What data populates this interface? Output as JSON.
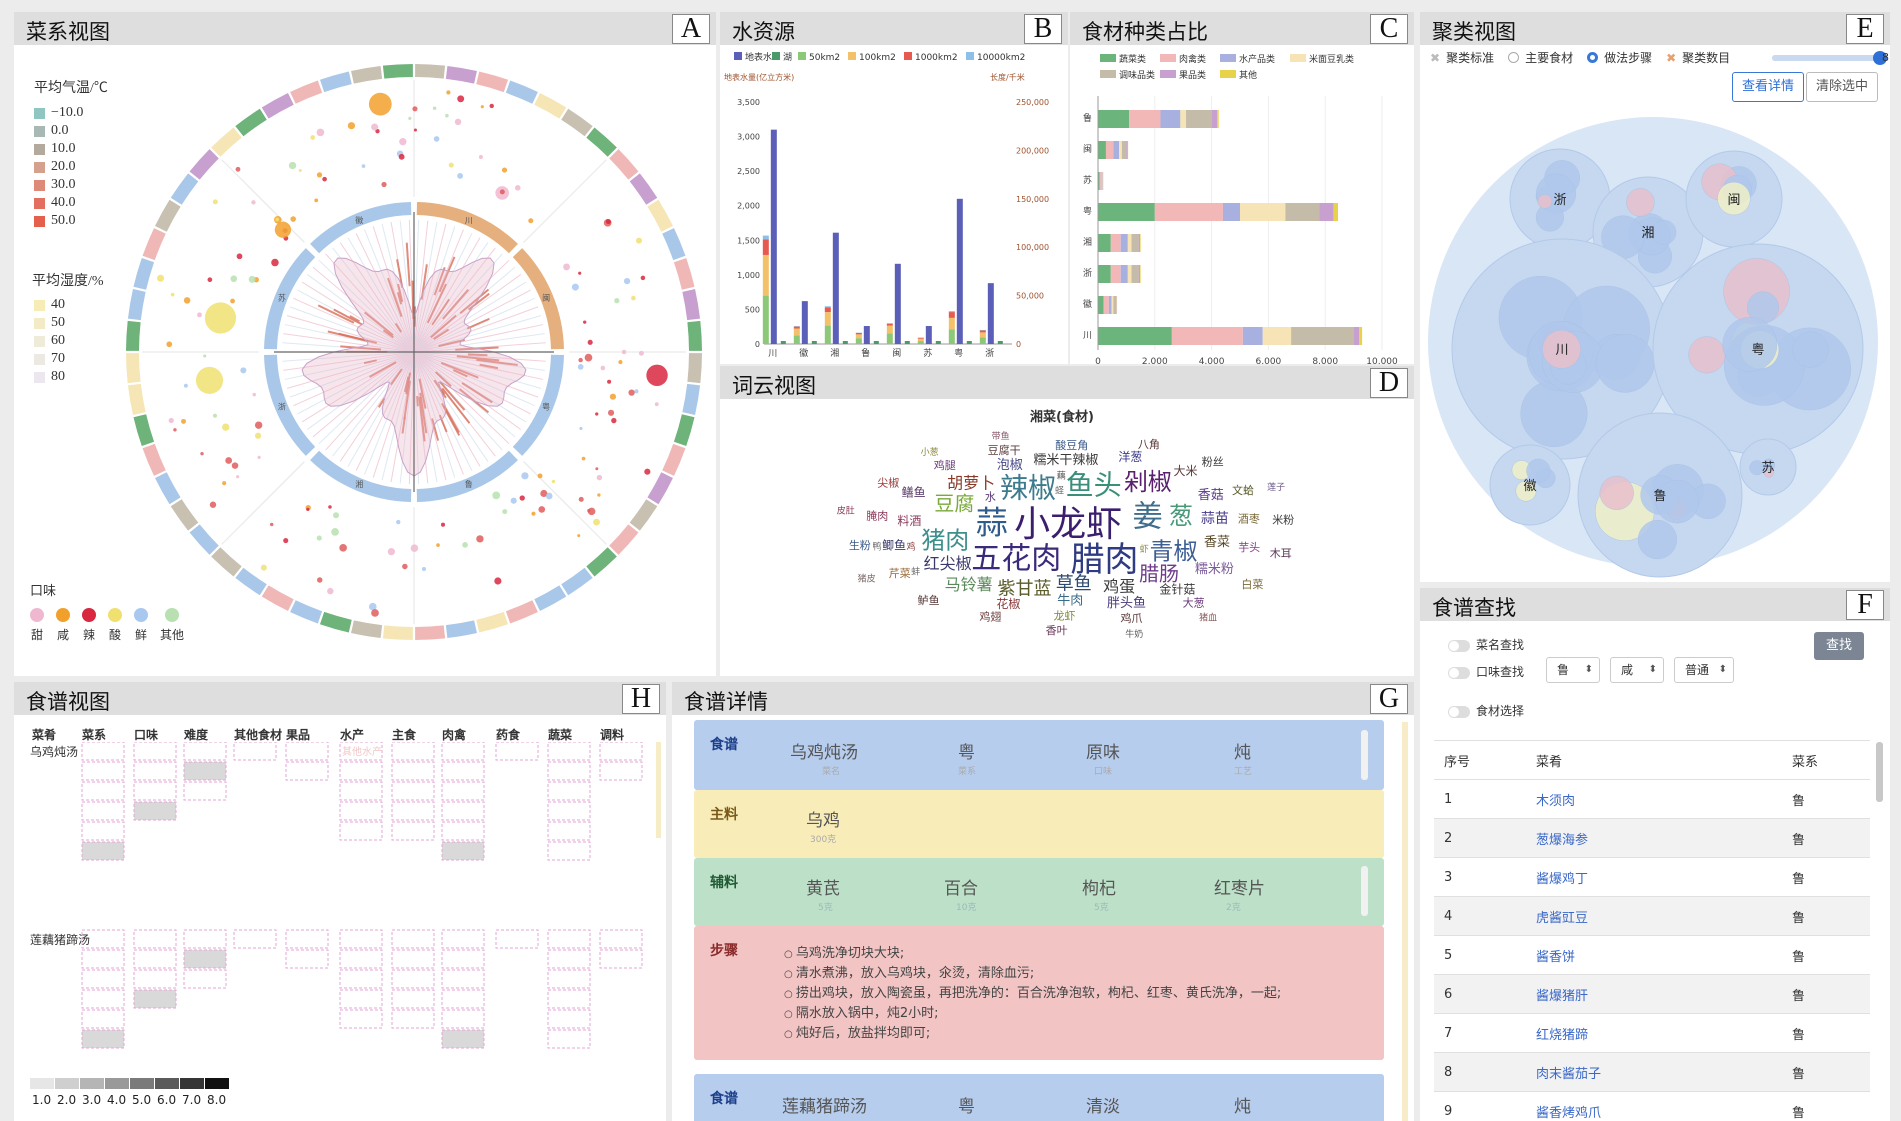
{
  "panels": {
    "A": {
      "title": "菜系视图",
      "letter": "A"
    },
    "B": {
      "title": "水资源",
      "letter": "B"
    },
    "C": {
      "title": "食材种类占比",
      "letter": "C"
    },
    "D": {
      "title": "词云视图",
      "letter": "D"
    },
    "E": {
      "title": "聚类视图",
      "letter": "E"
    },
    "F": {
      "title": "食谱查找",
      "letter": "F"
    },
    "G": {
      "title": "食谱详情",
      "letter": "G"
    },
    "H": {
      "title": "食谱视图",
      "letter": "H"
    }
  },
  "cuisine_view": {
    "temp_title": "平均气温/℃",
    "temp_legend": [
      {
        "label": "−10.0",
        "color": "#8fc6c2"
      },
      {
        "label": "0.0",
        "color": "#a8b8b4"
      },
      {
        "label": "10.0",
        "color": "#b3a99c"
      },
      {
        "label": "20.0",
        "color": "#d6a08e"
      },
      {
        "label": "30.0",
        "color": "#de8a78"
      },
      {
        "label": "40.0",
        "color": "#e3705e"
      },
      {
        "label": "50.0",
        "color": "#e4604c"
      }
    ],
    "hum_title": "平均湿度/%",
    "hum_legend": [
      {
        "label": "40",
        "color": "#f6ecb6"
      },
      {
        "label": "50",
        "color": "#f3ebc5"
      },
      {
        "label": "60",
        "color": "#eeebd9"
      },
      {
        "label": "70",
        "color": "#ece9e2"
      },
      {
        "label": "80",
        "color": "#ece6ee"
      }
    ],
    "flavor_title": "口味",
    "flavor_legend": [
      {
        "label": "甜",
        "color": "#f0b8d0"
      },
      {
        "label": "咸",
        "color": "#f2a02c"
      },
      {
        "label": "辣",
        "color": "#d8273f"
      },
      {
        "label": "酸",
        "color": "#f0e070"
      },
      {
        "label": "鲜",
        "color": "#a8c8f0"
      },
      {
        "label": "其他",
        "color": "#b8e0b0"
      }
    ],
    "inner_ring": [
      {
        "label": "川",
        "color": "#e6b07e"
      },
      {
        "label": "闽",
        "color": "#e6b07e"
      },
      {
        "label": "粤",
        "color": "#a9c7e8"
      },
      {
        "label": "鲁",
        "color": "#a9c7e8"
      },
      {
        "label": "湘",
        "color": "#a9c7e8"
      },
      {
        "label": "浙",
        "color": "#a9c7e8"
      },
      {
        "label": "苏",
        "color": "#a9c7e8"
      },
      {
        "label": "徽",
        "color": "#a9c7e8"
      }
    ]
  },
  "water": {
    "legend": [
      {
        "label": "地表水",
        "color": "#5b5fb8"
      },
      {
        "label": "湖",
        "color": "#4a9a6a"
      },
      {
        "label": "50km2",
        "color": "#8cc878"
      },
      {
        "label": "100km2",
        "color": "#f2c16a"
      },
      {
        "label": "1000km2",
        "color": "#e65a50"
      },
      {
        "label": "10000km2",
        "color": "#8cc0e8"
      }
    ],
    "y_left_label": "地表水量(亿立方米)",
    "y_right_label": "长度/千米",
    "y_left_ticks": [
      "3,500",
      "3,000",
      "2,500",
      "2,000",
      "1,500",
      "1,000",
      "500",
      "0"
    ],
    "y_right_ticks": [
      "250,000",
      "200,000",
      "150,000",
      "100,000",
      "50,000",
      "0"
    ]
  },
  "chart_data": [
    {
      "type": "bar",
      "categories": [
        "川",
        "徽",
        "湘",
        "鲁",
        "闽",
        "苏",
        "粤",
        "浙"
      ],
      "series": [
        {
          "name": "地表水",
          "values": [
            3100,
            620,
            1610,
            260,
            1160,
            260,
            2100,
            880
          ]
        },
        {
          "name": "50km2",
          "values": [
            50000,
            9000,
            19000,
            6000,
            11000,
            3000,
            15000,
            7000
          ]
        },
        {
          "name": "100km2",
          "values": [
            42000,
            7000,
            14000,
            4000,
            8000,
            2500,
            12000,
            5000
          ]
        },
        {
          "name": "1000km2",
          "values": [
            16000,
            2000,
            5000,
            1500,
            2000,
            1000,
            6000,
            2000
          ]
        },
        {
          "name": "10000km2",
          "values": [
            4000,
            500,
            1000,
            200,
            500,
            200,
            1000,
            500
          ]
        }
      ],
      "ylim_left": [
        0,
        3500
      ],
      "ylim_right": [
        0,
        250000
      ]
    },
    {
      "type": "bar",
      "orientation": "horizontal",
      "categories": [
        "鲁",
        "闽",
        "苏",
        "粤",
        "湘",
        "浙",
        "徽",
        "川"
      ],
      "series": [
        {
          "name": "蔬菜类",
          "values": [
            1100,
            280,
            60,
            2000,
            450,
            450,
            200,
            2600
          ]
        },
        {
          "name": "肉禽类",
          "values": [
            1100,
            260,
            40,
            2400,
            350,
            350,
            180,
            2500
          ]
        },
        {
          "name": "水产品类",
          "values": [
            700,
            200,
            30,
            600,
            250,
            250,
            100,
            700
          ]
        },
        {
          "name": "米面豆乳类",
          "values": [
            200,
            100,
            20,
            1600,
            130,
            130,
            60,
            1000
          ]
        },
        {
          "name": "调味品类",
          "values": [
            900,
            160,
            20,
            1200,
            250,
            250,
            100,
            2200
          ]
        },
        {
          "name": "果品类",
          "values": [
            200,
            50,
            10,
            500,
            50,
            50,
            20,
            200
          ]
        },
        {
          "name": "其他",
          "values": [
            50,
            10,
            5,
            150,
            20,
            20,
            10,
            100
          ]
        }
      ],
      "xticks": [
        "0",
        "2,000",
        "4,000",
        "6,000",
        "8,000",
        "10,000"
      ],
      "xlim": [
        0,
        10000
      ]
    }
  ],
  "ingredients": {
    "legend": [
      {
        "label": "蔬菜类",
        "color": "#6bb47c"
      },
      {
        "label": "肉禽类",
        "color": "#f2b8b8"
      },
      {
        "label": "水产品类",
        "color": "#a8b0e0"
      },
      {
        "label": "米面豆乳类",
        "color": "#f6e4b6"
      },
      {
        "label": "调味品类",
        "color": "#c4bba8"
      },
      {
        "label": "果品类",
        "color": "#c8a0d0"
      },
      {
        "label": "其他",
        "color": "#e8d24a"
      }
    ]
  },
  "wordcloud": {
    "title": "湘菜(食材)",
    "words": [
      {
        "w": "小龙虾",
        "s": 36,
        "c": "#3b1f6e"
      },
      {
        "w": "腊肉",
        "s": 34,
        "c": "#2f3b82"
      },
      {
        "w": "五花肉",
        "s": 30,
        "c": "#3b2a7a"
      },
      {
        "w": "蒜",
        "s": 32,
        "c": "#2f5b8a"
      },
      {
        "w": "姜",
        "s": 30,
        "c": "#3e6e8c"
      },
      {
        "w": "辣椒",
        "s": 28,
        "c": "#3d7a8e"
      },
      {
        "w": "鱼头",
        "s": 28,
        "c": "#3a8e7a"
      },
      {
        "w": "青椒",
        "s": 24,
        "c": "#3c5e94"
      },
      {
        "w": "猪肉",
        "s": 24,
        "c": "#3e8f8c"
      },
      {
        "w": "剁椒",
        "s": 24,
        "c": "#5a1f6e"
      },
      {
        "w": "葱",
        "s": 24,
        "c": "#4a9a7a"
      },
      {
        "w": "豆腐",
        "s": 20,
        "c": "#7aa83a"
      },
      {
        "w": "腊肠",
        "s": 20,
        "c": "#6e3a8a"
      },
      {
        "w": "草鱼",
        "s": 18,
        "c": "#2e4a6e"
      },
      {
        "w": "紫甘蓝",
        "s": 18,
        "c": "#5a5a2a"
      },
      {
        "w": "红尖椒",
        "s": 16,
        "c": "#3a3a6e"
      },
      {
        "w": "胡萝卜",
        "s": 16,
        "c": "#8a3a2a"
      },
      {
        "w": "鸡蛋",
        "s": 16,
        "c": "#3a3a3a"
      },
      {
        "w": "马铃薯",
        "s": 16,
        "c": "#5a8a5a"
      },
      {
        "w": "蒜苗",
        "s": 14,
        "c": "#4a3a8a"
      },
      {
        "w": "香菜",
        "s": 13,
        "c": "#5a4a2a"
      },
      {
        "w": "牛肉",
        "s": 13,
        "c": "#3a6a8a"
      },
      {
        "w": "泡椒",
        "s": 13,
        "c": "#4a4a8a"
      },
      {
        "w": "糯米干辣椒",
        "s": 13,
        "c": "#3a3a3a"
      },
      {
        "w": "香菇",
        "s": 13,
        "c": "#5a3a8a"
      },
      {
        "w": "糯米粉",
        "s": 13,
        "c": "#7a5a9a"
      },
      {
        "w": "胖头鱼",
        "s": 13,
        "c": "#4a3a7a"
      },
      {
        "w": "金针菇",
        "s": 12,
        "c": "#3a3a3a"
      },
      {
        "w": "料酒",
        "s": 12,
        "c": "#8a3a5a"
      },
      {
        "w": "花椒",
        "s": 12,
        "c": "#8a3a3a"
      },
      {
        "w": "鲫鱼",
        "s": 12,
        "c": "#3a3a6a"
      },
      {
        "w": "鳝鱼",
        "s": 12,
        "c": "#5a3a6a"
      },
      {
        "w": "洋葱",
        "s": 12,
        "c": "#3a3a8a"
      },
      {
        "w": "大米",
        "s": 12,
        "c": "#5a3a3a"
      },
      {
        "w": "酒枣",
        "s": 11,
        "c": "#7a6a3a"
      },
      {
        "w": "芋头",
        "s": 11,
        "c": "#8a3a8a"
      },
      {
        "w": "龙虾",
        "s": 11,
        "c": "#7a8a3a"
      },
      {
        "w": "芹菜",
        "s": 11,
        "c": "#9a6a3a"
      },
      {
        "w": "腌肉",
        "s": 11,
        "c": "#8a3a5a"
      },
      {
        "w": "鸡腿",
        "s": 11,
        "c": "#6a3a7a"
      },
      {
        "w": "豆腐干",
        "s": 11,
        "c": "#5a3a3a"
      },
      {
        "w": "酸豆角",
        "s": 11,
        "c": "#3a5a8a"
      },
      {
        "w": "文蛤",
        "s": 11,
        "c": "#5a5a2a"
      },
      {
        "w": "大葱",
        "s": 11,
        "c": "#6a3a7a"
      },
      {
        "w": "鸡爪",
        "s": 11,
        "c": "#5a3a3a"
      },
      {
        "w": "鸡翅",
        "s": 11,
        "c": "#6a3a3a"
      },
      {
        "w": "鲈鱼",
        "s": 11,
        "c": "#5a3a3a"
      },
      {
        "w": "生粉",
        "s": 11,
        "c": "#3a5a8a"
      },
      {
        "w": "尖椒",
        "s": 11,
        "c": "#9a3a3a"
      },
      {
        "w": "八角",
        "s": 11,
        "c": "#5a3a3a"
      },
      {
        "w": "粉丝",
        "s": 11,
        "c": "#3a3a3a"
      },
      {
        "w": "米粉",
        "s": 11,
        "c": "#3a3a3a"
      },
      {
        "w": "木耳",
        "s": 11,
        "c": "#5a3a5a"
      },
      {
        "w": "白菜",
        "s": 11,
        "c": "#7a6a3a"
      },
      {
        "w": "香叶",
        "s": 11,
        "c": "#6a3a5a"
      },
      {
        "w": "水",
        "s": 11,
        "c": "#5a3a7a"
      },
      {
        "w": "猪皮",
        "s": 9,
        "c": "#7a6a6a"
      },
      {
        "w": "皮肚",
        "s": 9,
        "c": "#8a3a5a"
      },
      {
        "w": "小葱",
        "s": 9,
        "c": "#8a8a3a"
      },
      {
        "w": "带鱼",
        "s": 9,
        "c": "#8a5a6a"
      },
      {
        "w": "虾",
        "s": 9,
        "c": "#8a8a3a"
      },
      {
        "w": "莲子",
        "s": 9,
        "c": "#6a5a8a"
      },
      {
        "w": "猪血",
        "s": 9,
        "c": "#8a5a5a"
      },
      {
        "w": "蛏",
        "s": 9,
        "c": "#6a6a6a"
      },
      {
        "w": "牛奶",
        "s": 9,
        "c": "#5a5a5a"
      },
      {
        "w": "藕",
        "s": 9,
        "c": "#5a5a5a"
      },
      {
        "w": "鸡",
        "s": 9,
        "c": "#8a3a3a"
      },
      {
        "w": "蚌",
        "s": 9,
        "c": "#6a6a6a"
      },
      {
        "w": "鸭",
        "s": 9,
        "c": "#6a6a6a"
      }
    ]
  },
  "cluster": {
    "opt1": "聚类标准",
    "opt2": "主要食材",
    "opt3": "做法步骤",
    "opt4": "聚类数目",
    "slider_value": "8",
    "slider_fraction": 1.0,
    "btn_detail": "查看详情",
    "btn_clear": "清除选中",
    "groups": [
      "浙",
      "湘",
      "闽",
      "川",
      "粤",
      "徽",
      "鲁",
      "苏"
    ]
  },
  "search": {
    "opt_name": "菜名查找",
    "opt_flavor": "口味查找",
    "opt_ing": "食材选择",
    "sel1": "鲁",
    "sel2": "咸",
    "sel3": "普通",
    "find_btn": "查找",
    "headers": [
      "序号",
      "菜肴",
      "菜系"
    ],
    "rows": [
      {
        "no": "1",
        "name": "木须肉",
        "cuisine": "鲁"
      },
      {
        "no": "2",
        "name": "葱爆海参",
        "cuisine": "鲁"
      },
      {
        "no": "3",
        "name": "酱爆鸡丁",
        "cuisine": "鲁"
      },
      {
        "no": "4",
        "name": "虎酱豇豆",
        "cuisine": "鲁"
      },
      {
        "no": "5",
        "name": "酱香饼",
        "cuisine": "鲁"
      },
      {
        "no": "6",
        "name": "酱爆猪肝",
        "cuisine": "鲁"
      },
      {
        "no": "7",
        "name": "红烧猪蹄",
        "cuisine": "鲁"
      },
      {
        "no": "8",
        "name": "肉末酱茄子",
        "cuisine": "鲁"
      },
      {
        "no": "9",
        "name": "酱香烤鸡爪",
        "cuisine": "鲁"
      }
    ]
  },
  "recipe_view": {
    "headers": [
      "菜肴",
      "菜系",
      "口味",
      "难度",
      "其他食材",
      "果品",
      "水产",
      "主食",
      "肉禽",
      "药食",
      "蔬菜",
      "调料"
    ],
    "dish1": "乌鸡炖汤",
    "dish2": "莲藕猪蹄汤",
    "faint_label": "其他水产",
    "scale": [
      "1.0",
      "2.0",
      "3.0",
      "4.0",
      "5.0",
      "6.0",
      "7.0",
      "8.0"
    ]
  },
  "detail": {
    "card1": {
      "label": "食谱",
      "name": "乌鸡炖汤",
      "name_sub": "菜名",
      "cuisine": "粤",
      "cuisine_sub": "菜系",
      "flavor": "原味",
      "flavor_sub": "口味",
      "method": "炖",
      "method_sub": "工艺"
    },
    "main": {
      "label": "主料",
      "item": "乌鸡",
      "qty": "300克"
    },
    "aux": {
      "label": "辅料",
      "items": [
        {
          "name": "黄芪",
          "qty": "5克"
        },
        {
          "name": "百合",
          "qty": "10克"
        },
        {
          "name": "枸杞",
          "qty": "5克"
        },
        {
          "name": "红枣片",
          "qty": "2克"
        }
      ]
    },
    "steps": {
      "label": "步骤",
      "items": [
        "乌鸡洗净切块大块;",
        "清水煮沸，放入乌鸡块，氽烫，清除血污;",
        "捞出鸡块，放入陶瓷虽，再把洗净的：百合洗净泡软，枸杞、红枣、黄氏洗净，一起;",
        "隔水放入锅中，炖2小时;",
        "炖好后，放盐拌均即可;"
      ]
    },
    "card2": {
      "label": "食谱",
      "name": "莲藕猪蹄汤",
      "cuisine": "粤",
      "flavor": "清淡",
      "method": "炖"
    }
  }
}
